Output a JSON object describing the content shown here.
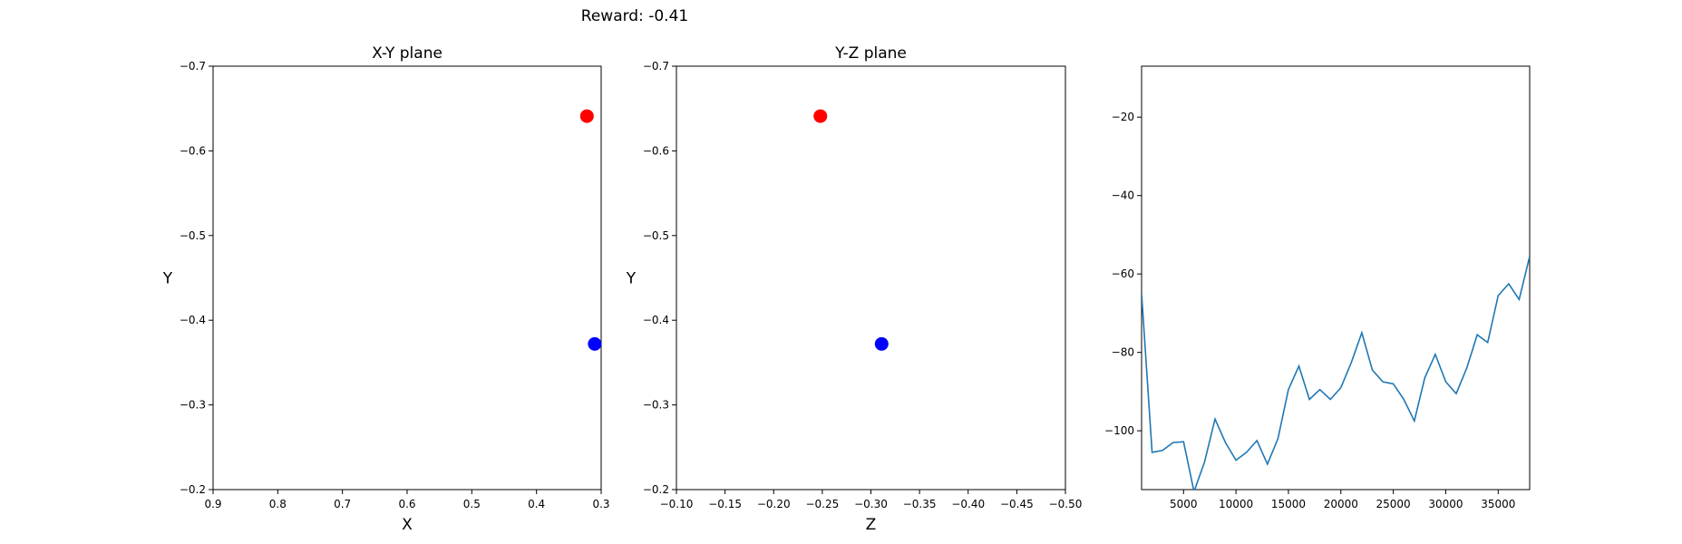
{
  "suptitle": "Reward: -0.41",
  "chart_data": [
    {
      "type": "scatter",
      "title": "X-Y plane",
      "xlabel": "X",
      "ylabel": "Y",
      "xlim": [
        0.9,
        0.3
      ],
      "ylim": [
        -0.2,
        -0.7
      ],
      "xticks": [
        0.9,
        0.8,
        0.7,
        0.6,
        0.5,
        0.4,
        0.3
      ],
      "xtick_labels": [
        "0.9",
        "0.8",
        "0.7",
        "0.6",
        "0.5",
        "0.4",
        "0.3"
      ],
      "yticks": [
        -0.2,
        -0.3,
        -0.4,
        -0.5,
        -0.6,
        -0.7
      ],
      "ytick_labels": [
        "−0.2",
        "−0.3",
        "−0.4",
        "−0.5",
        "−0.6",
        "−0.7"
      ],
      "points": [
        {
          "x": 0.322,
          "y": -0.641,
          "color": "#ff0000"
        },
        {
          "x": 0.31,
          "y": -0.372,
          "color": "#0000ff"
        }
      ]
    },
    {
      "type": "scatter",
      "title": "Y-Z plane",
      "xlabel": "Z",
      "ylabel": "Y",
      "xlim": [
        -0.1,
        -0.5
      ],
      "ylim": [
        -0.2,
        -0.7
      ],
      "xticks": [
        -0.1,
        -0.15,
        -0.2,
        -0.25,
        -0.3,
        -0.35,
        -0.4,
        -0.45,
        -0.5
      ],
      "xtick_labels": [
        "−0.10",
        "−0.15",
        "−0.20",
        "−0.25",
        "−0.30",
        "−0.35",
        "−0.40",
        "−0.45",
        "−0.50"
      ],
      "yticks": [
        -0.2,
        -0.3,
        -0.4,
        -0.5,
        -0.6,
        -0.7
      ],
      "ytick_labels": [
        "−0.2",
        "−0.3",
        "−0.4",
        "−0.5",
        "−0.6",
        "−0.7"
      ],
      "points": [
        {
          "x": -0.248,
          "y": -0.641,
          "color": "#ff0000"
        },
        {
          "x": -0.311,
          "y": -0.372,
          "color": "#0000ff"
        }
      ]
    },
    {
      "type": "line",
      "title": "",
      "xlabel": "",
      "ylabel": "",
      "xlim": [
        1000,
        38000
      ],
      "ylim": [
        -115,
        -7
      ],
      "xticks": [
        5000,
        10000,
        15000,
        20000,
        25000,
        30000,
        35000
      ],
      "xtick_labels": [
        "5000",
        "10000",
        "15000",
        "20000",
        "25000",
        "30000",
        "35000"
      ],
      "yticks": [
        -20,
        -40,
        -60,
        -80,
        -100
      ],
      "ytick_labels": [
        "−20",
        "−40",
        "−60",
        "−80",
        "−100"
      ],
      "color": "#1f77b4",
      "x": [
        1000,
        2000,
        3000,
        4000,
        5000,
        6000,
        7000,
        8000,
        9000,
        10000,
        11000,
        12000,
        13000,
        14000,
        15000,
        16000,
        17000,
        18000,
        19000,
        20000,
        21000,
        22000,
        23000,
        24000,
        25000,
        26000,
        27000,
        28000,
        29000,
        30000,
        31000,
        32000,
        33000,
        34000,
        35000,
        36000,
        37000,
        38000
      ],
      "y": [
        -65,
        -105.5,
        -105,
        -103,
        -102.8,
        -115.5,
        -108,
        -97,
        -103,
        -107.5,
        -105.5,
        -102.5,
        -108.5,
        -102,
        -89.5,
        -83.5,
        -92,
        -89.5,
        -92,
        -89,
        -82.5,
        -75,
        -84.5,
        -87.5,
        -88,
        -92,
        -97.5,
        -86.5,
        -80.5,
        -87.5,
        -90.5,
        -84,
        -75.5,
        -77.5,
        -65.5,
        -62.5,
        -66.5,
        -55.5
      ]
    }
  ]
}
